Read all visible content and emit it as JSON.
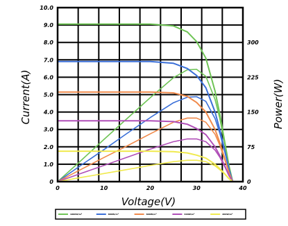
{
  "chart_data": {
    "type": "line",
    "title": "",
    "xlabel": "Voltage(V)",
    "ylabel_left": "Current(A)",
    "ylabel_right": "Power(W)",
    "xlim": [
      0,
      40
    ],
    "ylim_left": [
      0,
      10
    ],
    "ylim_right": [
      0,
      375
    ],
    "x_ticks": [
      "0",
      "10",
      "20",
      "30",
      "40"
    ],
    "y_ticks_left": [
      "0",
      "1.0",
      "2.0",
      "3.0",
      "4.0",
      "5.0",
      "6.0",
      "7.0",
      "8.0",
      "9.0",
      "10.0"
    ],
    "y_ticks_right": [
      "0",
      "75",
      "150",
      "225",
      "300"
    ],
    "grid": true,
    "legend_position": "bottom",
    "legend_labels": [
      "1000W/m²",
      "800W/m²",
      "600W/m²",
      "400W/m²",
      "200W/m²"
    ],
    "x": [
      0,
      5,
      10,
      15,
      20,
      25,
      28,
      30,
      32,
      34,
      35,
      36,
      37,
      37.8
    ],
    "series": [
      {
        "name": "1000W/m²",
        "color": "#6fc456",
        "current": [
          9.05,
          9.05,
          9.05,
          9.05,
          9.05,
          8.95,
          8.6,
          8.05,
          7.1,
          5.2,
          3.9,
          2.4,
          0.9,
          0
        ],
        "power": [
          0,
          45,
          91,
          136,
          181,
          224,
          241,
          242,
          227,
          177,
          137,
          86,
          33,
          0
        ]
      },
      {
        "name": "800W/m²",
        "color": "#3a6fd8",
        "current": [
          6.9,
          6.9,
          6.9,
          6.9,
          6.9,
          6.8,
          6.5,
          6.1,
          5.4,
          4.0,
          3.0,
          1.9,
          0.7,
          0
        ],
        "power": [
          0,
          35,
          69,
          104,
          138,
          170,
          182,
          183,
          173,
          136,
          105,
          68,
          26,
          0
        ]
      },
      {
        "name": "600W/m²",
        "color": "#f08a4b",
        "current": [
          5.15,
          5.15,
          5.15,
          5.15,
          5.15,
          5.1,
          4.9,
          4.55,
          4.0,
          3.0,
          2.25,
          1.4,
          0.5,
          0
        ],
        "power": [
          0,
          26,
          52,
          77,
          103,
          128,
          137,
          137,
          128,
          102,
          79,
          50,
          19,
          0
        ]
      },
      {
        "name": "400W/m²",
        "color": "#b04fb8",
        "current": [
          3.5,
          3.5,
          3.5,
          3.5,
          3.5,
          3.45,
          3.3,
          3.05,
          2.7,
          2.0,
          1.5,
          0.95,
          0.35,
          0
        ],
        "power": [
          0,
          17.5,
          35,
          52.5,
          70,
          86,
          92,
          92,
          86,
          68,
          53,
          34,
          13,
          0
        ]
      },
      {
        "name": "200W/m²",
        "color": "#f0ea4e",
        "current": [
          1.75,
          1.75,
          1.75,
          1.75,
          1.75,
          1.72,
          1.65,
          1.52,
          1.35,
          1.0,
          0.75,
          0.47,
          0.17,
          0
        ],
        "power": [
          0,
          8.8,
          17.5,
          26,
          35,
          43,
          46,
          46,
          43,
          34,
          26,
          17,
          6,
          0
        ]
      }
    ]
  }
}
